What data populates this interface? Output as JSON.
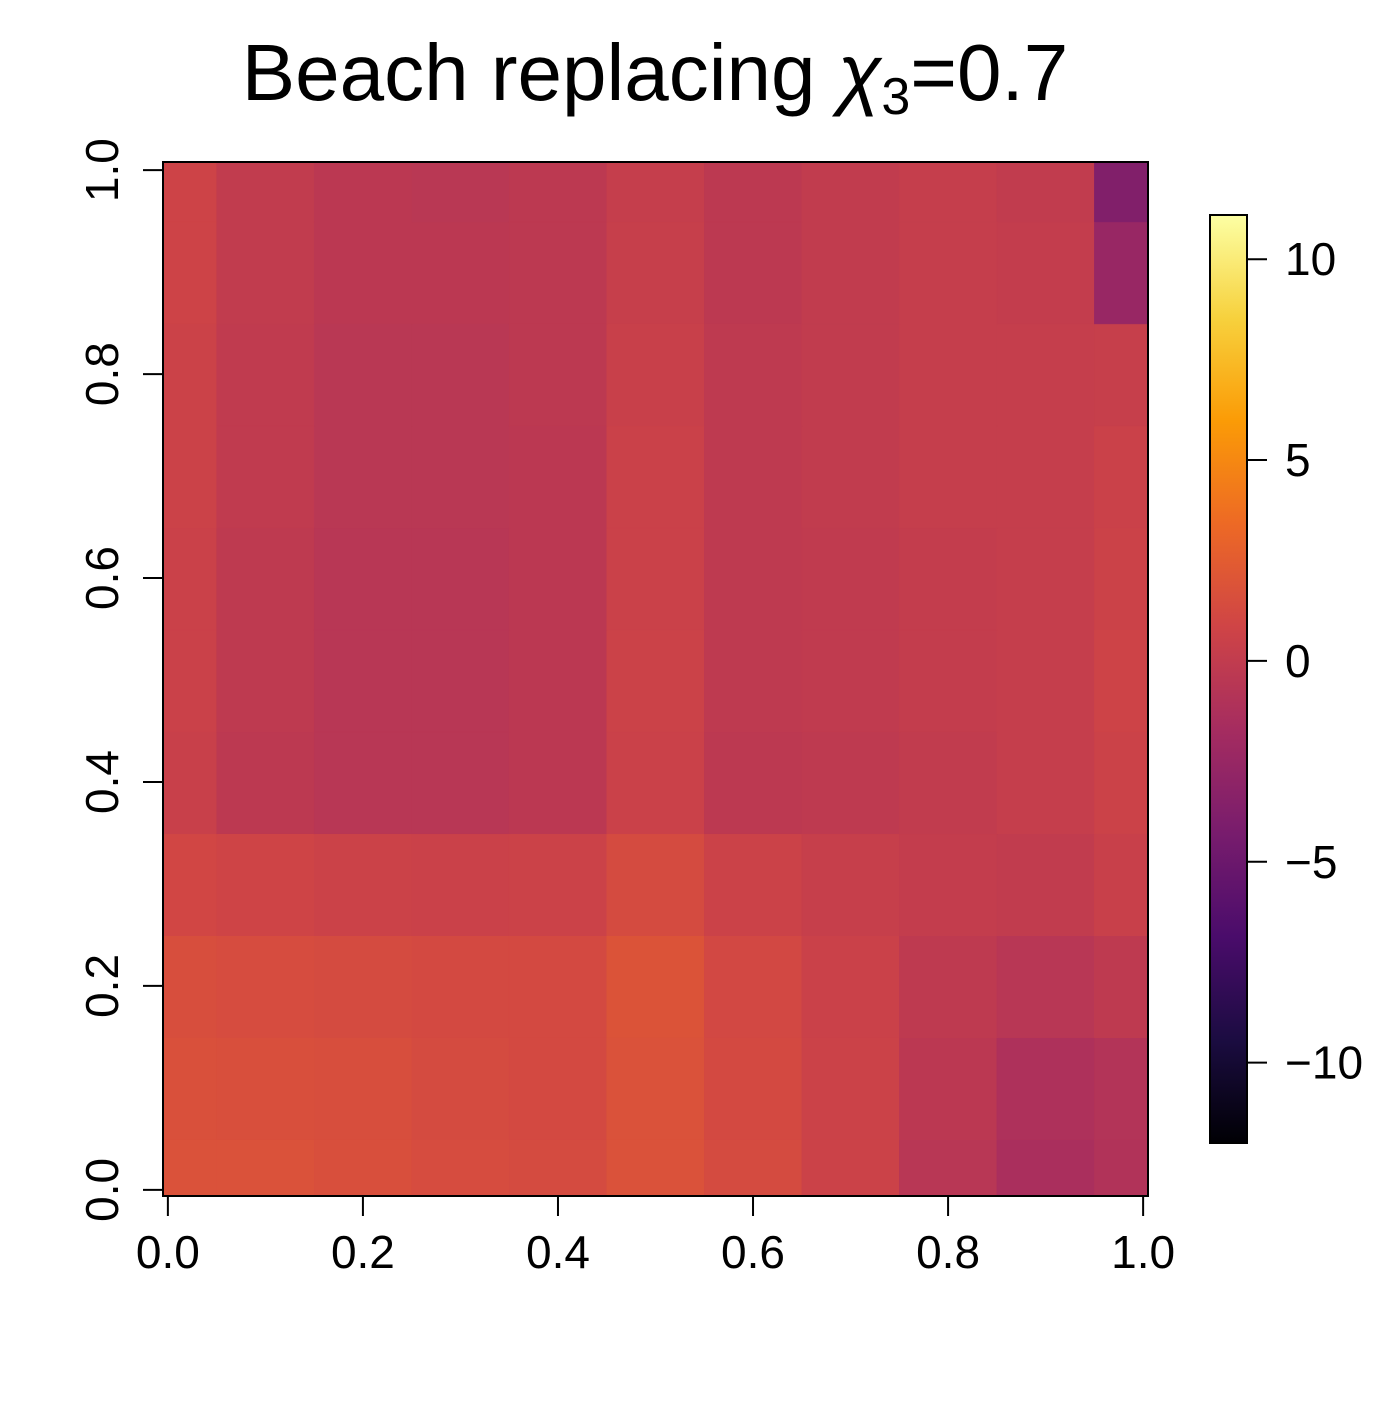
{
  "chart_data": {
    "type": "heatmap",
    "title": {
      "main": "Beach replacing ",
      "symbol": "χ",
      "subscript": "3",
      "suffix": "=0.7"
    },
    "x": [
      0,
      0.1,
      0.2,
      0.3,
      0.4,
      0.5,
      0.6,
      0.7,
      0.8,
      0.9,
      1
    ],
    "y": [
      0,
      0.1,
      0.2,
      0.3,
      0.4,
      0.5,
      0.6,
      0.7,
      0.8,
      0.9,
      1
    ],
    "z": [
      [
        1.8,
        1.8,
        1.6,
        1.4,
        1.3,
        1.8,
        1.3,
        0.6,
        -0.6,
        -1.4,
        -1.0
      ],
      [
        1.7,
        1.6,
        1.5,
        1.3,
        1.2,
        1.8,
        1.2,
        0.6,
        -0.4,
        -1.2,
        -0.9
      ],
      [
        1.5,
        1.4,
        1.3,
        1.2,
        1.2,
        1.9,
        1.1,
        0.5,
        -0.2,
        -0.6,
        -0.2
      ],
      [
        1.0,
        0.8,
        0.6,
        0.5,
        0.6,
        1.3,
        0.6,
        0.3,
        0.1,
        0,
        0.4
      ],
      [
        0.4,
        -0.3,
        -0.6,
        -0.6,
        -0.4,
        0.5,
        -0.3,
        -0.2,
        0,
        0.2,
        0.6
      ],
      [
        0.5,
        -0.2,
        -0.6,
        -0.6,
        -0.4,
        0.6,
        -0.2,
        -0.1,
        0.1,
        0.2,
        0.7
      ],
      [
        0.5,
        -0.2,
        -0.6,
        -0.6,
        -0.4,
        0.5,
        -0.2,
        -0.1,
        0.1,
        0.2,
        0.6
      ],
      [
        0.6,
        -0.1,
        -0.5,
        -0.5,
        -0.4,
        0.5,
        -0.2,
        0,
        0.2,
        0.2,
        0.5
      ],
      [
        0.6,
        -0.1,
        -0.5,
        -0.5,
        -0.3,
        0.4,
        -0.2,
        0,
        0.2,
        0.2,
        0.3
      ],
      [
        0.7,
        0,
        -0.4,
        -0.4,
        -0.3,
        0.3,
        -0.3,
        0,
        0.2,
        0.1,
        -2.5
      ],
      [
        0.7,
        0,
        -0.4,
        -0.5,
        -0.3,
        0.2,
        -0.3,
        0,
        0.2,
        0,
        -3.8
      ]
    ],
    "xlim": [
      -0.005,
      1.005
    ],
    "ylim": [
      -0.006,
      1.008
    ],
    "xticks": [
      {
        "value": 0,
        "label": "0.0"
      },
      0.2,
      0.4,
      0.6,
      0.8,
      {
        "value": 1,
        "label": "1.0"
      }
    ],
    "yticks": [
      {
        "value": 0,
        "label": "0.0"
      },
      0.2,
      0.4,
      0.6,
      0.8,
      {
        "value": 1,
        "label": "1.0"
      }
    ],
    "colormap": "inferno",
    "zlim": [
      -12,
      11.1
    ],
    "zticks": [
      {
        "value": -10,
        "label": "−10"
      },
      {
        "value": -5,
        "label": "−5"
      },
      0,
      5,
      10
    ]
  }
}
